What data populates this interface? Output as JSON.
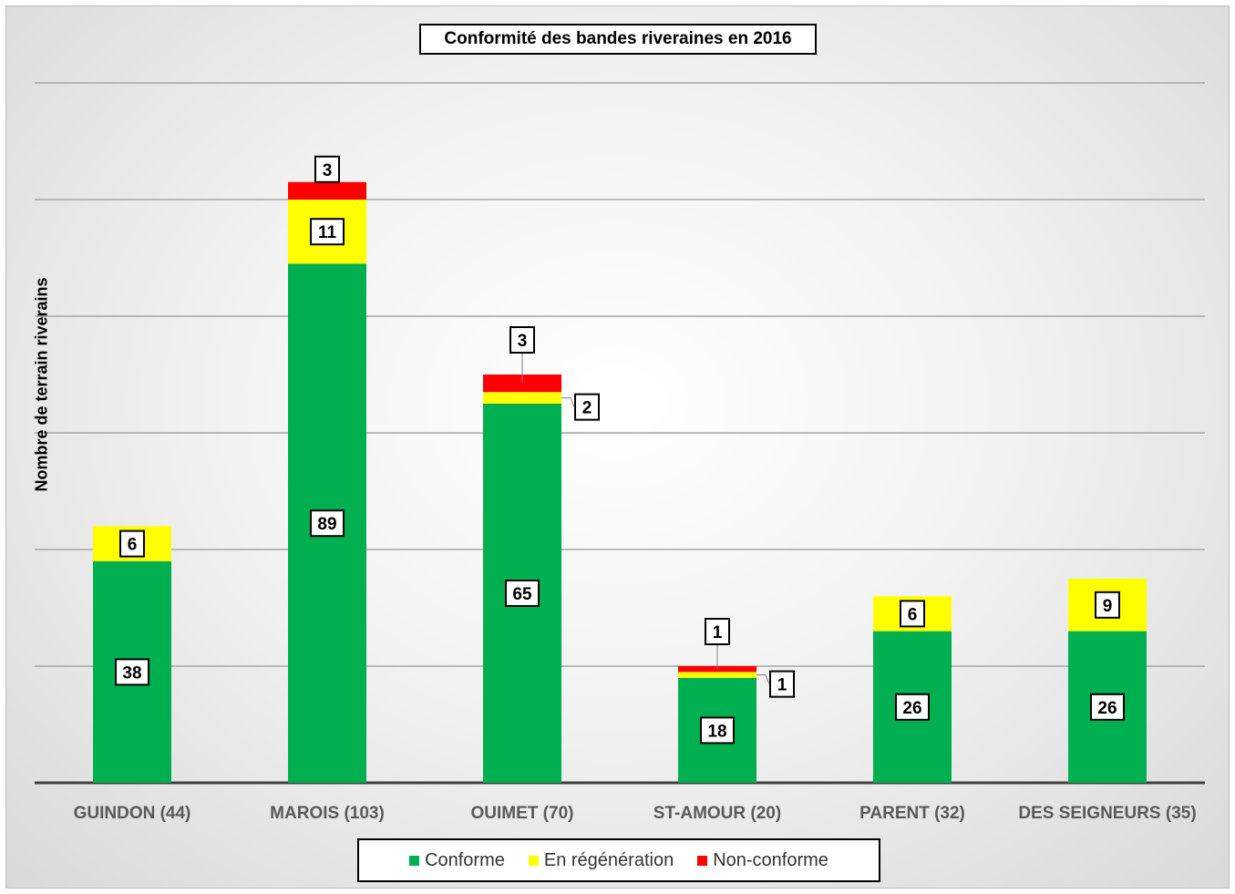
{
  "chart_data": {
    "type": "bar",
    "stacked": true,
    "title": "Conformité des bandes riveraines en 2016",
    "ylabel": "Nombre de terrain riverains",
    "xlabel": "",
    "ylim": [
      0,
      120
    ],
    "grid": true,
    "legend_position": "bottom",
    "categories": [
      "GUINDON (44)",
      "MAROIS (103)",
      "OUIMET (70)",
      "ST-AMOUR  (20)",
      "PARENT (32)",
      "DES SEIGNEURS (35)"
    ],
    "series": [
      {
        "name": "Conforme",
        "color": "#00b050",
        "values": [
          38,
          89,
          65,
          18,
          26,
          26
        ]
      },
      {
        "name": "En régénération",
        "color": "#ffff00",
        "values": [
          6,
          11,
          2,
          1,
          6,
          9
        ]
      },
      {
        "name": "Non-conforme",
        "color": "#ff0000",
        "values": [
          0,
          3,
          3,
          1,
          0,
          0
        ]
      }
    ]
  }
}
